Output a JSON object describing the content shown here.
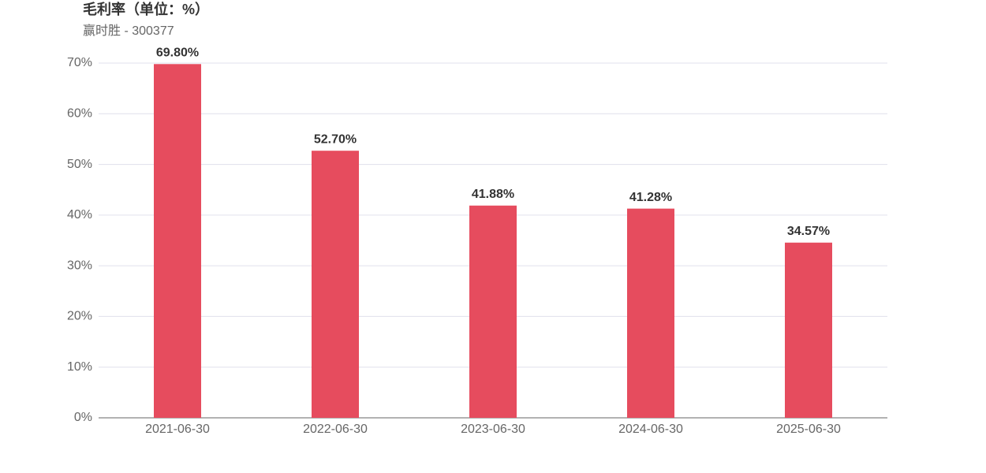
{
  "chart_data": {
    "type": "bar",
    "title": "毛利率（单位：%）",
    "subtitle": "赢时胜 - 300377",
    "categories": [
      "2021-06-30",
      "2022-06-30",
      "2023-06-30",
      "2024-06-30",
      "2025-06-30"
    ],
    "values": [
      69.8,
      52.7,
      41.88,
      41.28,
      34.57
    ],
    "value_labels": [
      "69.80%",
      "52.70%",
      "41.88%",
      "41.28%",
      "34.57%"
    ],
    "color": "#e64c5e",
    "ylim": [
      0,
      70
    ],
    "yticks": [
      {
        "value": 0,
        "label": "0%"
      },
      {
        "value": 10,
        "label": "10%"
      },
      {
        "value": 20,
        "label": "20%"
      },
      {
        "value": 30,
        "label": "30%"
      },
      {
        "value": 40,
        "label": "40%"
      },
      {
        "value": 50,
        "label": "50%"
      },
      {
        "value": 60,
        "label": "60%"
      },
      {
        "value": 70,
        "label": "70%"
      }
    ],
    "grid": true
  }
}
